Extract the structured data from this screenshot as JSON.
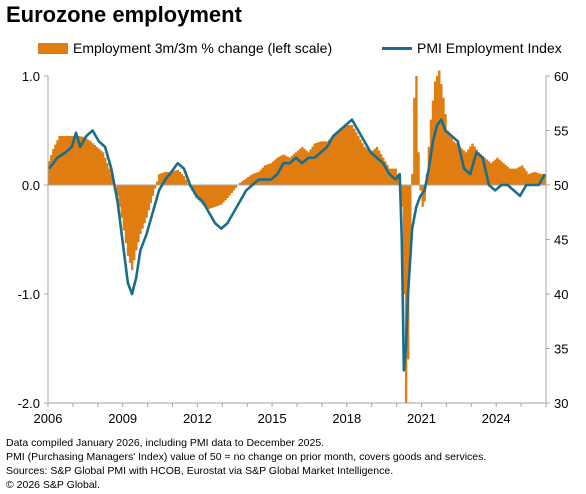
{
  "title": "Eurozone employment",
  "colors": {
    "bar": "#e07d10",
    "line": "#1b6d8c",
    "axis": "#a6a6a6"
  },
  "notes": [
    "Data compiled January 2026, including PMI data to December 2025.",
    "PMI (Purchasing Managers' Index) value of 50 = no change on prior month, covers goods and services.",
    "Sources: S&P Global PMI with HCOB, Eurostat via S&P Global Market Intelligence.",
    "© 2026 S&P Global."
  ],
  "chart_data": {
    "type": "bar",
    "grid": false,
    "legend_position": "top",
    "x_range": [
      "2006-01",
      "2025-12"
    ],
    "x_ticks": [
      "2006",
      "2009",
      "2012",
      "2015",
      "2018",
      "2021",
      "2024"
    ],
    "y_left": {
      "ylim": [
        -2.0,
        1.0
      ],
      "ticks": [
        "1.0",
        "0.0",
        "-1.0",
        "-2.0"
      ]
    },
    "y_right": {
      "ylim": [
        30,
        60
      ],
      "ticks": [
        "60",
        "55",
        "50",
        "45",
        "40",
        "35",
        "30"
      ]
    },
    "series": [
      {
        "name": "Employment 3m/3m % change (left scale)",
        "type": "bar",
        "axis": "left",
        "points": [
          [
            "2006-01",
            0.22
          ],
          [
            "2006-03",
            0.33
          ],
          [
            "2006-06",
            0.45
          ],
          [
            "2006-10",
            0.45
          ],
          [
            "2007-03",
            0.45
          ],
          [
            "2007-06",
            0.44
          ],
          [
            "2007-09",
            0.4
          ],
          [
            "2007-12",
            0.35
          ],
          [
            "2008-03",
            0.3
          ],
          [
            "2008-06",
            0.15
          ],
          [
            "2008-09",
            0.0
          ],
          [
            "2008-12",
            -0.3
          ],
          [
            "2009-03",
            -0.65
          ],
          [
            "2009-05",
            -0.78
          ],
          [
            "2009-07",
            -0.6
          ],
          [
            "2009-09",
            -0.45
          ],
          [
            "2009-12",
            -0.3
          ],
          [
            "2010-03",
            -0.1
          ],
          [
            "2010-06",
            0.1
          ],
          [
            "2010-09",
            0.12
          ],
          [
            "2010-12",
            0.12
          ],
          [
            "2011-03",
            0.14
          ],
          [
            "2011-06",
            0.08
          ],
          [
            "2011-09",
            -0.02
          ],
          [
            "2011-12",
            -0.12
          ],
          [
            "2012-03",
            -0.18
          ],
          [
            "2012-06",
            -0.22
          ],
          [
            "2012-09",
            -0.2
          ],
          [
            "2012-12",
            -0.18
          ],
          [
            "2013-03",
            -0.12
          ],
          [
            "2013-06",
            -0.05
          ],
          [
            "2013-09",
            0.02
          ],
          [
            "2013-12",
            0.06
          ],
          [
            "2014-03",
            0.1
          ],
          [
            "2014-06",
            0.12
          ],
          [
            "2014-09",
            0.18
          ],
          [
            "2014-12",
            0.2
          ],
          [
            "2015-03",
            0.25
          ],
          [
            "2015-06",
            0.28
          ],
          [
            "2015-09",
            0.25
          ],
          [
            "2015-12",
            0.3
          ],
          [
            "2016-03",
            0.35
          ],
          [
            "2016-06",
            0.3
          ],
          [
            "2016-09",
            0.38
          ],
          [
            "2016-12",
            0.4
          ],
          [
            "2017-03",
            0.4
          ],
          [
            "2017-06",
            0.45
          ],
          [
            "2017-09",
            0.5
          ],
          [
            "2017-12",
            0.55
          ],
          [
            "2018-03",
            0.55
          ],
          [
            "2018-06",
            0.45
          ],
          [
            "2018-09",
            0.35
          ],
          [
            "2018-12",
            0.3
          ],
          [
            "2019-03",
            0.35
          ],
          [
            "2019-06",
            0.25
          ],
          [
            "2019-09",
            0.15
          ],
          [
            "2019-12",
            0.15
          ],
          [
            "2020-02",
            0.05
          ],
          [
            "2020-03",
            -0.2
          ],
          [
            "2020-04",
            -1.0
          ],
          [
            "2020-05",
            -2.0
          ],
          [
            "2020-06",
            -1.6
          ],
          [
            "2020-07",
            -0.6
          ],
          [
            "2020-08",
            0.1
          ],
          [
            "2020-09",
            0.8
          ],
          [
            "2020-10",
            1.0
          ],
          [
            "2020-11",
            0.3
          ],
          [
            "2020-12",
            -0.05
          ],
          [
            "2021-01",
            -0.2
          ],
          [
            "2021-02",
            -0.15
          ],
          [
            "2021-03",
            0.1
          ],
          [
            "2021-05",
            0.6
          ],
          [
            "2021-07",
            0.95
          ],
          [
            "2021-09",
            1.05
          ],
          [
            "2021-11",
            0.8
          ],
          [
            "2022-01",
            0.5
          ],
          [
            "2022-04",
            0.4
          ],
          [
            "2022-07",
            0.35
          ],
          [
            "2022-10",
            0.3
          ],
          [
            "2023-01",
            0.38
          ],
          [
            "2023-04",
            0.3
          ],
          [
            "2023-07",
            0.25
          ],
          [
            "2023-10",
            0.2
          ],
          [
            "2024-01",
            0.25
          ],
          [
            "2024-04",
            0.2
          ],
          [
            "2024-07",
            0.15
          ],
          [
            "2024-10",
            0.15
          ],
          [
            "2025-01",
            0.18
          ],
          [
            "2025-04",
            0.1
          ],
          [
            "2025-07",
            0.12
          ],
          [
            "2025-10",
            0.1
          ],
          [
            "2025-12",
            0.1
          ]
        ]
      },
      {
        "name": "PMI Employment Index",
        "type": "line",
        "axis": "right",
        "points": [
          [
            "2006-01",
            51.5
          ],
          [
            "2006-05",
            52.5
          ],
          [
            "2006-09",
            53.0
          ],
          [
            "2006-12",
            53.5
          ],
          [
            "2007-02",
            54.8
          ],
          [
            "2007-04",
            53.5
          ],
          [
            "2007-07",
            54.5
          ],
          [
            "2007-10",
            55.0
          ],
          [
            "2008-01",
            54.0
          ],
          [
            "2008-04",
            53.5
          ],
          [
            "2008-07",
            51.5
          ],
          [
            "2008-10",
            48.5
          ],
          [
            "2009-01",
            44.0
          ],
          [
            "2009-03",
            41.0
          ],
          [
            "2009-05",
            40.0
          ],
          [
            "2009-07",
            41.5
          ],
          [
            "2009-09",
            44.0
          ],
          [
            "2009-12",
            45.5
          ],
          [
            "2010-03",
            47.5
          ],
          [
            "2010-06",
            49.5
          ],
          [
            "2010-09",
            50.5
          ],
          [
            "2010-12",
            51.2
          ],
          [
            "2011-03",
            52.0
          ],
          [
            "2011-06",
            51.5
          ],
          [
            "2011-09",
            50.0
          ],
          [
            "2011-12",
            49.0
          ],
          [
            "2012-03",
            48.5
          ],
          [
            "2012-06",
            47.5
          ],
          [
            "2012-09",
            46.5
          ],
          [
            "2012-12",
            46.0
          ],
          [
            "2013-03",
            46.5
          ],
          [
            "2013-06",
            47.5
          ],
          [
            "2013-09",
            48.5
          ],
          [
            "2013-12",
            49.5
          ],
          [
            "2014-03",
            50.0
          ],
          [
            "2014-06",
            50.5
          ],
          [
            "2014-09",
            50.5
          ],
          [
            "2014-12",
            50.5
          ],
          [
            "2015-03",
            51.0
          ],
          [
            "2015-06",
            52.0
          ],
          [
            "2015-09",
            52.0
          ],
          [
            "2015-12",
            52.5
          ],
          [
            "2016-03",
            52.0
          ],
          [
            "2016-06",
            52.5
          ],
          [
            "2016-09",
            52.5
          ],
          [
            "2016-12",
            53.0
          ],
          [
            "2017-03",
            53.5
          ],
          [
            "2017-06",
            54.5
          ],
          [
            "2017-09",
            55.0
          ],
          [
            "2017-12",
            55.5
          ],
          [
            "2018-03",
            56.0
          ],
          [
            "2018-06",
            55.0
          ],
          [
            "2018-09",
            54.0
          ],
          [
            "2018-12",
            53.0
          ],
          [
            "2019-03",
            52.5
          ],
          [
            "2019-06",
            52.0
          ],
          [
            "2019-09",
            51.0
          ],
          [
            "2019-12",
            50.5
          ],
          [
            "2020-02",
            51.0
          ],
          [
            "2020-03",
            45.0
          ],
          [
            "2020-04",
            33.0
          ],
          [
            "2020-05",
            35.0
          ],
          [
            "2020-06",
            40.0
          ],
          [
            "2020-08",
            46.0
          ],
          [
            "2020-10",
            48.0
          ],
          [
            "2020-12",
            49.0
          ],
          [
            "2021-02",
            49.5
          ],
          [
            "2021-04",
            51.5
          ],
          [
            "2021-06",
            54.0
          ],
          [
            "2021-08",
            55.5
          ],
          [
            "2021-10",
            56.0
          ],
          [
            "2021-12",
            55.0
          ],
          [
            "2022-03",
            54.5
          ],
          [
            "2022-06",
            54.0
          ],
          [
            "2022-09",
            51.5
          ],
          [
            "2022-12",
            51.0
          ],
          [
            "2023-03",
            53.0
          ],
          [
            "2023-06",
            52.5
          ],
          [
            "2023-09",
            50.0
          ],
          [
            "2023-12",
            49.5
          ],
          [
            "2024-03",
            50.0
          ],
          [
            "2024-06",
            50.0
          ],
          [
            "2024-09",
            49.5
          ],
          [
            "2024-12",
            49.0
          ],
          [
            "2025-03",
            50.0
          ],
          [
            "2025-06",
            50.0
          ],
          [
            "2025-09",
            50.0
          ],
          [
            "2025-12",
            51.0
          ]
        ]
      }
    ]
  }
}
